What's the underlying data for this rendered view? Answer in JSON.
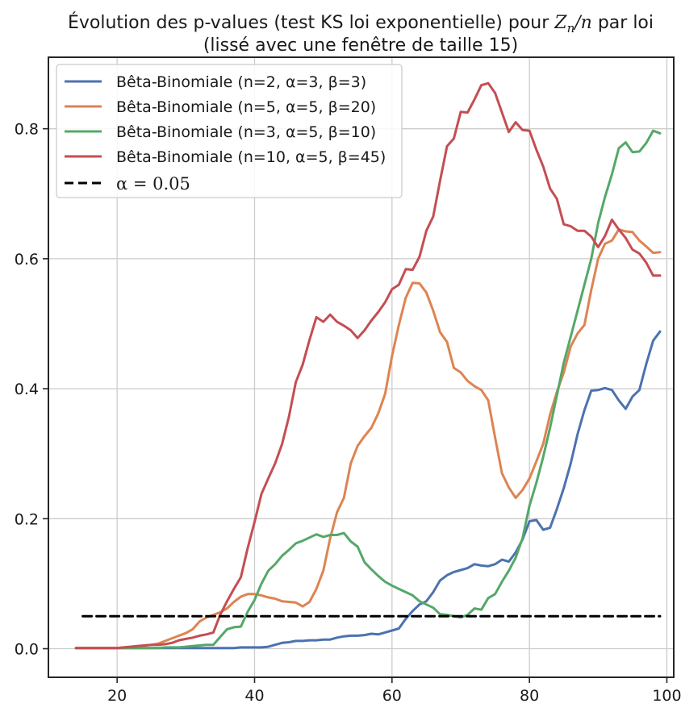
{
  "chart_data": {
    "type": "line",
    "title": {
      "line1_prefix": "Évolution des p-values (test KS loi exponentielle) pour ",
      "line1_math_var": "Z",
      "line1_math_sub": "n",
      "line1_math_rest": "/n",
      "line1_suffix": " par loi",
      "line2": "(lissé avec une fenêtre de taille 15)"
    },
    "xlabel": "",
    "ylabel": "",
    "xlim": [
      10,
      101
    ],
    "ylim": [
      -0.044,
      0.91
    ],
    "xticks": [
      20,
      40,
      60,
      80,
      100
    ],
    "yticks": [
      0.0,
      0.2,
      0.4,
      0.6,
      0.8
    ],
    "xtick_labels": [
      "20",
      "40",
      "60",
      "80",
      "100"
    ],
    "ytick_labels": [
      "0.0",
      "0.2",
      "0.4",
      "0.6",
      "0.8"
    ],
    "grid": true,
    "legend_placement": "top-left",
    "x": [
      14,
      15,
      16,
      17,
      18,
      19,
      20,
      21,
      22,
      23,
      24,
      25,
      26,
      27,
      28,
      29,
      30,
      31,
      32,
      33,
      34,
      35,
      36,
      37,
      38,
      39,
      40,
      41,
      42,
      43,
      44,
      45,
      46,
      47,
      48,
      49,
      50,
      51,
      52,
      53,
      54,
      55,
      56,
      57,
      58,
      59,
      60,
      61,
      62,
      63,
      64,
      65,
      66,
      67,
      68,
      69,
      70,
      71,
      72,
      73,
      74,
      75,
      76,
      77,
      78,
      79,
      80,
      81,
      82,
      83,
      84,
      85,
      86,
      87,
      88,
      89,
      90,
      91,
      92,
      93,
      94,
      95,
      96,
      97,
      98,
      99
    ],
    "series": [
      {
        "name": "Bêta-Binomiale (n=2, α=3, β=3)",
        "color": "#4c72b0",
        "values": [
          0.001,
          0.001,
          0.001,
          0.001,
          0.001,
          0.001,
          0.001,
          0.001,
          0.001,
          0.001,
          0.001,
          0.001,
          0.001,
          0.001,
          0.001,
          0.001,
          0.001,
          0.001,
          0.001,
          0.001,
          0.001,
          0.001,
          0.001,
          0.001,
          0.002,
          0.002,
          0.002,
          0.002,
          0.003,
          0.006,
          0.009,
          0.01,
          0.012,
          0.012,
          0.013,
          0.013,
          0.014,
          0.014,
          0.017,
          0.019,
          0.02,
          0.02,
          0.021,
          0.023,
          0.022,
          0.025,
          0.028,
          0.031,
          0.046,
          0.058,
          0.068,
          0.073,
          0.087,
          0.105,
          0.113,
          0.118,
          0.121,
          0.124,
          0.13,
          0.128,
          0.127,
          0.13,
          0.137,
          0.134,
          0.148,
          0.168,
          0.196,
          0.198,
          0.183,
          0.186,
          0.215,
          0.247,
          0.285,
          0.33,
          0.367,
          0.397,
          0.398,
          0.401,
          0.398,
          0.382,
          0.369,
          0.388,
          0.398,
          0.438,
          0.474,
          0.488
        ]
      },
      {
        "name": "Bêta-Binomiale (n=5, α=5, β=20)",
        "color": "#dd8452",
        "values": [
          0.001,
          0.001,
          0.001,
          0.001,
          0.001,
          0.001,
          0.001,
          0.002,
          0.003,
          0.004,
          0.005,
          0.006,
          0.008,
          0.012,
          0.016,
          0.02,
          0.024,
          0.03,
          0.042,
          0.048,
          0.052,
          0.056,
          0.062,
          0.072,
          0.08,
          0.084,
          0.084,
          0.082,
          0.079,
          0.077,
          0.073,
          0.072,
          0.071,
          0.065,
          0.072,
          0.092,
          0.12,
          0.17,
          0.21,
          0.232,
          0.285,
          0.312,
          0.327,
          0.34,
          0.362,
          0.392,
          0.45,
          0.498,
          0.54,
          0.563,
          0.562,
          0.548,
          0.52,
          0.487,
          0.472,
          0.432,
          0.425,
          0.412,
          0.404,
          0.398,
          0.382,
          0.325,
          0.27,
          0.248,
          0.232,
          0.244,
          0.262,
          0.288,
          0.315,
          0.36,
          0.395,
          0.425,
          0.465,
          0.485,
          0.498,
          0.552,
          0.6,
          0.623,
          0.628,
          0.645,
          0.642,
          0.641,
          0.628,
          0.619,
          0.609,
          0.61
        ]
      },
      {
        "name": "Bêta-Binomiale (n=3, α=5, β=10)",
        "color": "#55a868",
        "values": [
          0.001,
          0.001,
          0.001,
          0.001,
          0.001,
          0.001,
          0.001,
          0.001,
          0.001,
          0.001,
          0.001,
          0.001,
          0.001,
          0.002,
          0.002,
          0.002,
          0.003,
          0.004,
          0.005,
          0.006,
          0.006,
          0.018,
          0.03,
          0.033,
          0.034,
          0.057,
          0.075,
          0.1,
          0.12,
          0.13,
          0.143,
          0.152,
          0.162,
          0.166,
          0.171,
          0.176,
          0.172,
          0.175,
          0.175,
          0.178,
          0.165,
          0.157,
          0.133,
          0.122,
          0.112,
          0.103,
          0.097,
          0.092,
          0.087,
          0.082,
          0.073,
          0.068,
          0.063,
          0.053,
          0.052,
          0.05,
          0.048,
          0.052,
          0.062,
          0.06,
          0.078,
          0.084,
          0.103,
          0.12,
          0.14,
          0.17,
          0.22,
          0.255,
          0.295,
          0.34,
          0.39,
          0.44,
          0.48,
          0.52,
          0.56,
          0.6,
          0.655,
          0.695,
          0.73,
          0.77,
          0.779,
          0.764,
          0.765,
          0.778,
          0.797,
          0.793
        ]
      },
      {
        "name": "Bêta-Binomiale (n=10, α=5, β=45)",
        "color": "#c44e52",
        "values": [
          0.001,
          0.001,
          0.001,
          0.001,
          0.001,
          0.001,
          0.001,
          0.002,
          0.003,
          0.004,
          0.005,
          0.006,
          0.006,
          0.007,
          0.009,
          0.013,
          0.015,
          0.017,
          0.02,
          0.022,
          0.025,
          0.052,
          0.073,
          0.092,
          0.11,
          0.155,
          0.195,
          0.238,
          0.262,
          0.285,
          0.315,
          0.357,
          0.41,
          0.437,
          0.475,
          0.51,
          0.503,
          0.514,
          0.503,
          0.497,
          0.49,
          0.478,
          0.49,
          0.505,
          0.518,
          0.533,
          0.553,
          0.56,
          0.584,
          0.583,
          0.603,
          0.643,
          0.665,
          0.72,
          0.773,
          0.785,
          0.826,
          0.825,
          0.845,
          0.867,
          0.87,
          0.855,
          0.825,
          0.795,
          0.81,
          0.798,
          0.797,
          0.768,
          0.742,
          0.708,
          0.692,
          0.653,
          0.65,
          0.643,
          0.643,
          0.634,
          0.618,
          0.635,
          0.66,
          0.645,
          0.632,
          0.614,
          0.608,
          0.594,
          0.574,
          0.574
        ]
      },
      {
        "name": "α = 0.05",
        "color": "#000000",
        "dashed": true,
        "x_range": [
          15,
          99
        ],
        "constant": 0.05
      }
    ]
  }
}
